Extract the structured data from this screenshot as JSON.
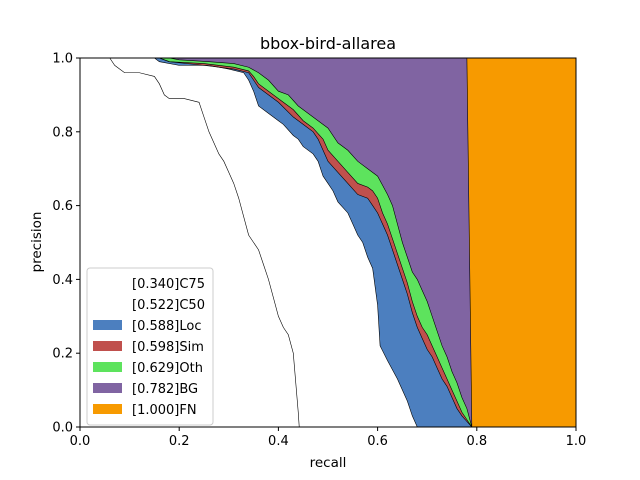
{
  "chart_data": {
    "type": "area",
    "title": "bbox-bird-allarea",
    "xlabel": "recall",
    "ylabel": "precision",
    "xlim": [
      0,
      1
    ],
    "ylim": [
      0,
      1
    ],
    "xticks": [
      "0.0",
      "0.2",
      "0.4",
      "0.6",
      "0.8",
      "1.0"
    ],
    "yticks": [
      "0.0",
      "0.2",
      "0.4",
      "0.6",
      "0.8",
      "1.0"
    ],
    "grid": false,
    "legend_position": "lower-left",
    "series": [
      {
        "name": "[0.340]C75",
        "color": "#ffffff",
        "points": [
          [
            0.0,
            1.0
          ],
          [
            0.06,
            1.0
          ],
          [
            0.07,
            0.98
          ],
          [
            0.09,
            0.96
          ],
          [
            0.12,
            0.96
          ],
          [
            0.15,
            0.95
          ],
          [
            0.16,
            0.93
          ],
          [
            0.17,
            0.9
          ],
          [
            0.18,
            0.89
          ],
          [
            0.21,
            0.89
          ],
          [
            0.24,
            0.88
          ],
          [
            0.25,
            0.84
          ],
          [
            0.26,
            0.8
          ],
          [
            0.27,
            0.77
          ],
          [
            0.28,
            0.74
          ],
          [
            0.29,
            0.72
          ],
          [
            0.3,
            0.69
          ],
          [
            0.31,
            0.66
          ],
          [
            0.32,
            0.62
          ],
          [
            0.33,
            0.57
          ],
          [
            0.34,
            0.52
          ],
          [
            0.35,
            0.5
          ],
          [
            0.36,
            0.48
          ],
          [
            0.37,
            0.44
          ],
          [
            0.38,
            0.4
          ],
          [
            0.39,
            0.35
          ],
          [
            0.4,
            0.3
          ],
          [
            0.41,
            0.27
          ],
          [
            0.42,
            0.25
          ],
          [
            0.43,
            0.2
          ],
          [
            0.435,
            0.12
          ],
          [
            0.44,
            0.04
          ],
          [
            0.442,
            0.0
          ]
        ]
      },
      {
        "name": "[0.522]C50",
        "color": "#ffffff",
        "points": [
          [
            0.0,
            1.0
          ],
          [
            0.15,
            1.0
          ],
          [
            0.16,
            0.99
          ],
          [
            0.2,
            0.98
          ],
          [
            0.26,
            0.98
          ],
          [
            0.3,
            0.97
          ],
          [
            0.33,
            0.96
          ],
          [
            0.34,
            0.94
          ],
          [
            0.35,
            0.91
          ],
          [
            0.36,
            0.87
          ],
          [
            0.38,
            0.85
          ],
          [
            0.4,
            0.83
          ],
          [
            0.41,
            0.82
          ],
          [
            0.43,
            0.79
          ],
          [
            0.44,
            0.78
          ],
          [
            0.45,
            0.76
          ],
          [
            0.47,
            0.74
          ],
          [
            0.48,
            0.72
          ],
          [
            0.49,
            0.68
          ],
          [
            0.5,
            0.66
          ],
          [
            0.51,
            0.64
          ],
          [
            0.52,
            0.61
          ],
          [
            0.54,
            0.58
          ],
          [
            0.55,
            0.55
          ],
          [
            0.56,
            0.52
          ],
          [
            0.57,
            0.5
          ],
          [
            0.58,
            0.46
          ],
          [
            0.59,
            0.43
          ],
          [
            0.595,
            0.38
          ],
          [
            0.6,
            0.33
          ],
          [
            0.605,
            0.22
          ],
          [
            0.62,
            0.18
          ],
          [
            0.64,
            0.13
          ],
          [
            0.66,
            0.07
          ],
          [
            0.67,
            0.03
          ],
          [
            0.68,
            0.0
          ]
        ]
      },
      {
        "name": "[0.588]Loc",
        "color": "#4c7fbf",
        "points": [
          [
            0.0,
            1.0
          ],
          [
            0.16,
            1.0
          ],
          [
            0.18,
            0.99
          ],
          [
            0.25,
            0.98
          ],
          [
            0.31,
            0.97
          ],
          [
            0.34,
            0.96
          ],
          [
            0.35,
            0.94
          ],
          [
            0.36,
            0.92
          ],
          [
            0.38,
            0.9
          ],
          [
            0.4,
            0.88
          ],
          [
            0.43,
            0.84
          ],
          [
            0.45,
            0.82
          ],
          [
            0.47,
            0.8
          ],
          [
            0.48,
            0.78
          ],
          [
            0.49,
            0.75
          ],
          [
            0.5,
            0.72
          ],
          [
            0.52,
            0.69
          ],
          [
            0.54,
            0.66
          ],
          [
            0.56,
            0.63
          ],
          [
            0.58,
            0.62
          ],
          [
            0.59,
            0.6
          ],
          [
            0.6,
            0.58
          ],
          [
            0.61,
            0.55
          ],
          [
            0.62,
            0.52
          ],
          [
            0.63,
            0.48
          ],
          [
            0.64,
            0.44
          ],
          [
            0.65,
            0.4
          ],
          [
            0.66,
            0.36
          ],
          [
            0.67,
            0.31
          ],
          [
            0.68,
            0.27
          ],
          [
            0.69,
            0.24
          ],
          [
            0.7,
            0.21
          ],
          [
            0.71,
            0.19
          ],
          [
            0.72,
            0.16
          ],
          [
            0.73,
            0.13
          ],
          [
            0.74,
            0.11
          ],
          [
            0.75,
            0.08
          ],
          [
            0.76,
            0.05
          ],
          [
            0.77,
            0.03
          ],
          [
            0.78,
            0.015
          ],
          [
            0.79,
            0.0
          ]
        ]
      },
      {
        "name": "[0.598]Sim",
        "color": "#c0504d",
        "points": [
          [
            0.0,
            1.0
          ],
          [
            0.16,
            1.0
          ],
          [
            0.18,
            0.99
          ],
          [
            0.25,
            0.985
          ],
          [
            0.31,
            0.975
          ],
          [
            0.34,
            0.965
          ],
          [
            0.35,
            0.95
          ],
          [
            0.36,
            0.93
          ],
          [
            0.38,
            0.91
          ],
          [
            0.4,
            0.89
          ],
          [
            0.43,
            0.86
          ],
          [
            0.45,
            0.83
          ],
          [
            0.47,
            0.81
          ],
          [
            0.48,
            0.795
          ],
          [
            0.49,
            0.78
          ],
          [
            0.5,
            0.75
          ],
          [
            0.52,
            0.72
          ],
          [
            0.54,
            0.69
          ],
          [
            0.56,
            0.66
          ],
          [
            0.58,
            0.65
          ],
          [
            0.59,
            0.64
          ],
          [
            0.6,
            0.62
          ],
          [
            0.61,
            0.58
          ],
          [
            0.62,
            0.55
          ],
          [
            0.63,
            0.51
          ],
          [
            0.64,
            0.47
          ],
          [
            0.65,
            0.43
          ],
          [
            0.66,
            0.39
          ],
          [
            0.67,
            0.34
          ],
          [
            0.68,
            0.3
          ],
          [
            0.69,
            0.27
          ],
          [
            0.7,
            0.25
          ],
          [
            0.71,
            0.22
          ],
          [
            0.72,
            0.19
          ],
          [
            0.73,
            0.16
          ],
          [
            0.74,
            0.13
          ],
          [
            0.75,
            0.1
          ],
          [
            0.76,
            0.07
          ],
          [
            0.77,
            0.04
          ],
          [
            0.78,
            0.02
          ],
          [
            0.79,
            0.0
          ]
        ]
      },
      {
        "name": "[0.629]Oth",
        "color": "#5de35d",
        "points": [
          [
            0.0,
            1.0
          ],
          [
            0.18,
            1.0
          ],
          [
            0.2,
            0.995
          ],
          [
            0.26,
            0.99
          ],
          [
            0.31,
            0.985
          ],
          [
            0.34,
            0.975
          ],
          [
            0.36,
            0.96
          ],
          [
            0.38,
            0.94
          ],
          [
            0.4,
            0.91
          ],
          [
            0.42,
            0.9
          ],
          [
            0.44,
            0.87
          ],
          [
            0.46,
            0.85
          ],
          [
            0.48,
            0.83
          ],
          [
            0.5,
            0.81
          ],
          [
            0.52,
            0.77
          ],
          [
            0.54,
            0.75
          ],
          [
            0.56,
            0.72
          ],
          [
            0.58,
            0.7
          ],
          [
            0.6,
            0.68
          ],
          [
            0.62,
            0.63
          ],
          [
            0.63,
            0.6
          ],
          [
            0.64,
            0.55
          ],
          [
            0.65,
            0.5
          ],
          [
            0.66,
            0.46
          ],
          [
            0.67,
            0.42
          ],
          [
            0.68,
            0.4
          ],
          [
            0.69,
            0.37
          ],
          [
            0.7,
            0.34
          ],
          [
            0.71,
            0.3
          ],
          [
            0.72,
            0.26
          ],
          [
            0.73,
            0.22
          ],
          [
            0.74,
            0.19
          ],
          [
            0.75,
            0.15
          ],
          [
            0.76,
            0.12
          ],
          [
            0.77,
            0.08
          ],
          [
            0.78,
            0.05
          ],
          [
            0.79,
            0.0
          ]
        ]
      },
      {
        "name": "[0.782]BG",
        "color": "#8064a2",
        "points": [
          [
            0.0,
            1.0
          ],
          [
            0.78,
            1.0
          ],
          [
            0.785,
            0.5
          ],
          [
            0.79,
            0.0
          ]
        ]
      },
      {
        "name": "[1.000]FN",
        "color": "#f79a00",
        "points": [
          [
            0.0,
            1.0
          ],
          [
            1.0,
            1.0
          ],
          [
            1.0,
            0.0
          ]
        ]
      }
    ]
  }
}
